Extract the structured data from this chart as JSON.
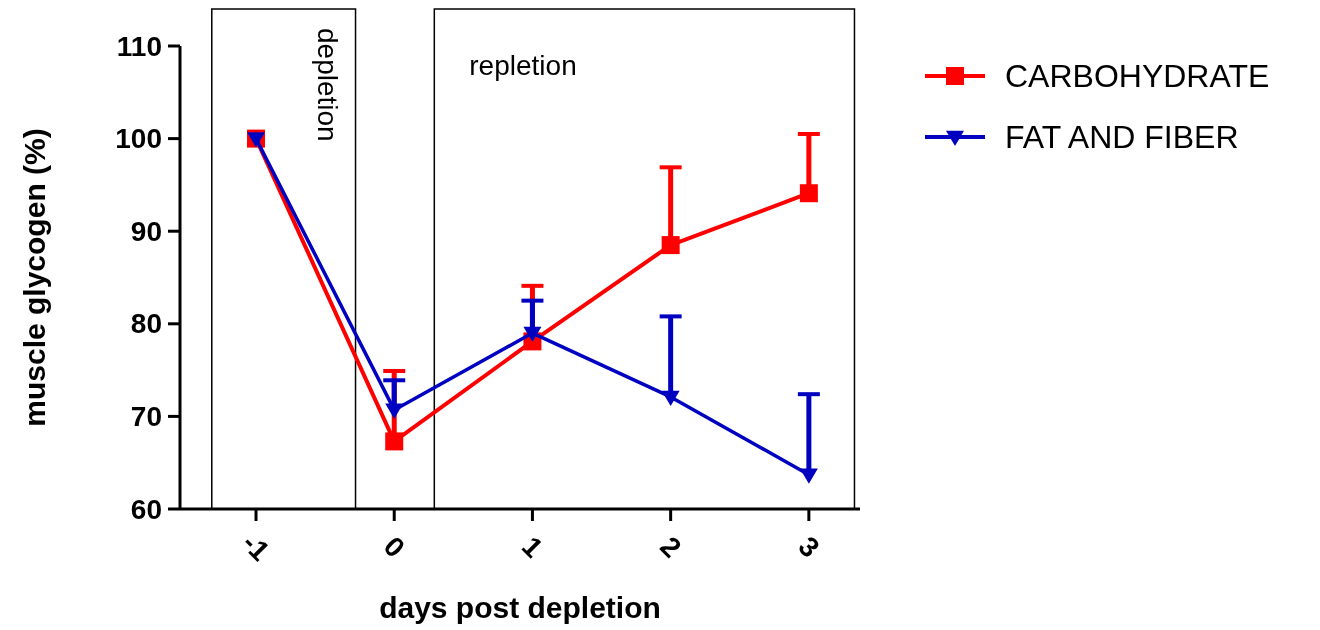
{
  "chart_data": {
    "type": "line",
    "xlabel": "days post depletion",
    "ylabel": "muscle glycogen (%)",
    "x": [
      -1,
      0,
      1,
      2,
      3
    ],
    "xlim": [
      -1.55,
      3.37
    ],
    "xticks": [
      -1,
      0,
      1,
      2,
      3
    ],
    "ylim": [
      60,
      110
    ],
    "yticks": [
      60,
      70,
      80,
      90,
      100,
      110
    ],
    "grid": false,
    "legend": "right",
    "line_style": "solid",
    "series": [
      {
        "name": "CARBOHYDRATE",
        "color": "#ff0000",
        "marker": "square",
        "values": [
          100,
          67.3,
          78.1,
          88.5,
          94.1
        ],
        "errors": [
          null,
          [
            67.3,
            74.9
          ],
          [
            78.1,
            84.1
          ],
          [
            88.5,
            96.9
          ],
          [
            94.1,
            100.5
          ]
        ]
      },
      {
        "name": "FAT AND FIBER",
        "color": "#0000c0",
        "marker": "triangle",
        "values": [
          100,
          70.7,
          79,
          72.1,
          63.7
        ],
        "errors": [
          null,
          [
            70.7,
            73.9
          ],
          [
            79,
            82.5
          ],
          [
            72.1,
            80.8
          ],
          [
            63.7,
            72.4
          ]
        ]
      }
    ],
    "bands": [
      {
        "axis": "x",
        "from": -1.32,
        "to": -0.28,
        "label": "depletion",
        "color": "#ffffff"
      },
      {
        "axis": "x",
        "from": 0.29,
        "to": 3.33,
        "label": "repletion",
        "color": "#ffffff"
      }
    ]
  }
}
